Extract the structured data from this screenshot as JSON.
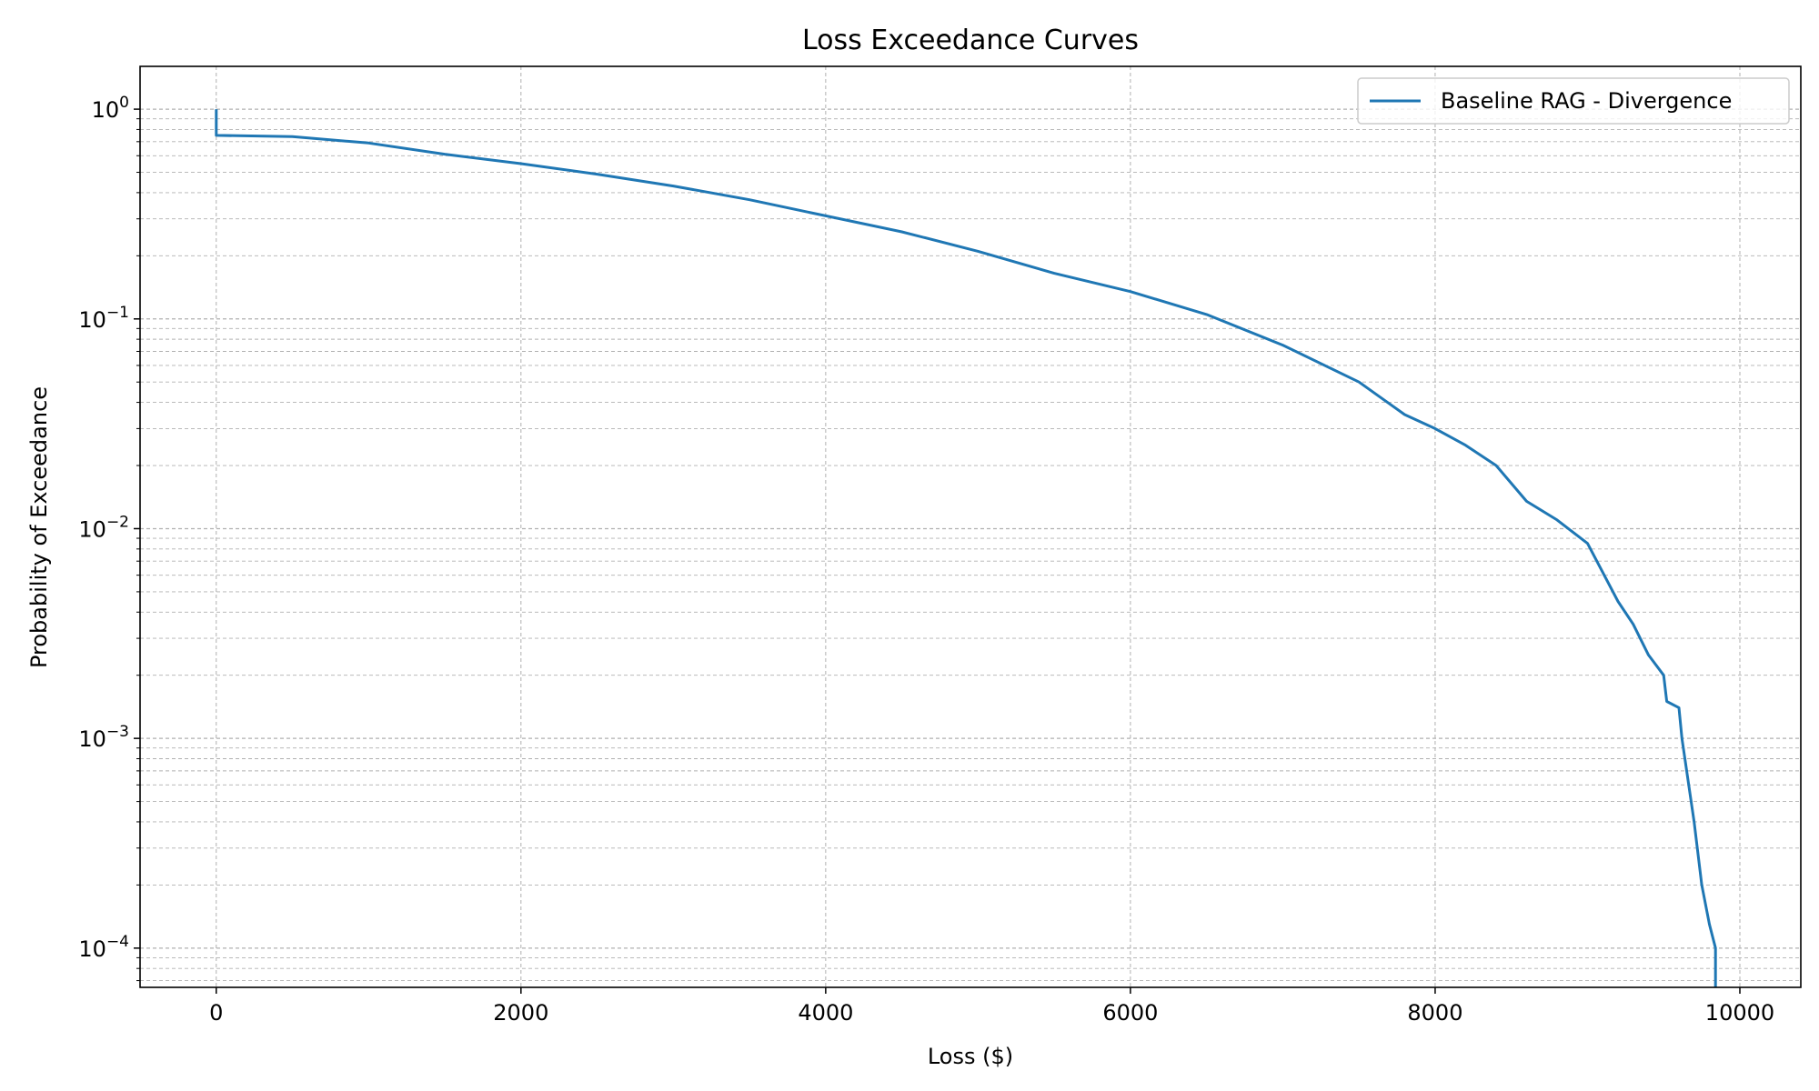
{
  "chart_data": {
    "type": "line",
    "title": "Loss Exceedance Curves",
    "xlabel": "Loss ($)",
    "ylabel": "Probability of Exceedance",
    "xlim": [
      -500,
      10400
    ],
    "ylim": [
      6.5e-05,
      1.6
    ],
    "yscale": "log",
    "grid": true,
    "grid_style": "dashed",
    "legend_position": "top-right",
    "xticks": [
      0,
      2000,
      4000,
      6000,
      8000,
      10000
    ],
    "xtick_labels": [
      "0",
      "2000",
      "4000",
      "6000",
      "8000",
      "10000"
    ],
    "yticks": [
      1,
      0.1,
      0.01,
      0.001,
      0.0001
    ],
    "ytick_labels": [
      {
        "base": "10",
        "exp": "0"
      },
      {
        "base": "10",
        "exp": "−1"
      },
      {
        "base": "10",
        "exp": "−2"
      },
      {
        "base": "10",
        "exp": "−3"
      },
      {
        "base": "10",
        "exp": "−4"
      }
    ],
    "series": [
      {
        "name": "Baseline RAG - Divergence",
        "color": "#1f77b4",
        "x": [
          0,
          0,
          500,
          1000,
          1500,
          2000,
          2500,
          3000,
          3500,
          4000,
          4500,
          5000,
          5500,
          6000,
          6500,
          7000,
          7500,
          7800,
          8000,
          8200,
          8400,
          8600,
          8800,
          9000,
          9200,
          9300,
          9400,
          9500,
          9520,
          9600,
          9620,
          9700,
          9750,
          9800,
          9840,
          9840
        ],
        "y": [
          1.0,
          0.75,
          0.74,
          0.69,
          0.61,
          0.55,
          0.49,
          0.43,
          0.37,
          0.31,
          0.26,
          0.21,
          0.165,
          0.135,
          0.105,
          0.075,
          0.05,
          0.035,
          0.03,
          0.025,
          0.02,
          0.0135,
          0.011,
          0.0085,
          0.0045,
          0.0035,
          0.0025,
          0.002,
          0.0015,
          0.0014,
          0.001,
          0.0004,
          0.0002,
          0.00013,
          0.0001,
          5e-05
        ]
      }
    ]
  }
}
